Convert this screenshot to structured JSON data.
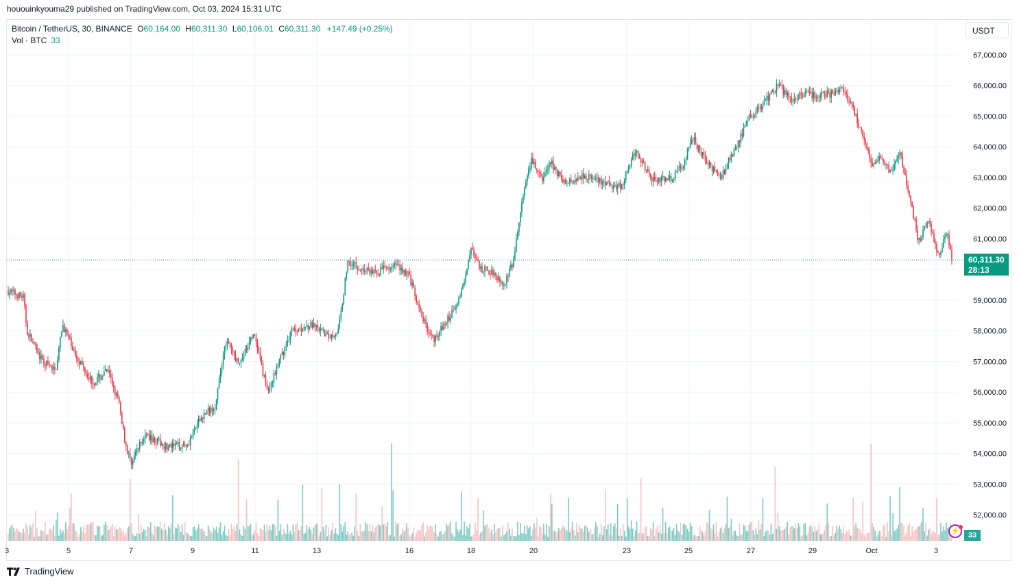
{
  "header": {
    "publish_line": "hououinkyouma29 published on TradingView.com, Oct 03, 2024 15:31 UTC"
  },
  "legend": {
    "symbol": "Bitcoin / TetherUS, 30, BINANCE",
    "open_label": "O",
    "open": "60,164.00",
    "high_label": "H",
    "high": "60,311.30",
    "low_label": "L",
    "low": "60,106.01",
    "close_label": "C",
    "close": "60,311.30",
    "change": "+147.49 (+0.25%)",
    "volume_label": "Vol · BTC",
    "volume_value": "33"
  },
  "currency_button": "USDT",
  "last_price": {
    "price": "60,311.30",
    "countdown": "28:13"
  },
  "volume_badge": "33",
  "footer": {
    "brand": "TradingView"
  },
  "colors": {
    "up": "#089981",
    "down": "#f23645",
    "vol_up": "#26a69a",
    "vol_down": "#ef9a9a",
    "grid": "#f0f3fa"
  },
  "chart_data": {
    "type": "candlestick",
    "timeframe": "30",
    "y_ticks": [
      "67,000.00",
      "66,000.00",
      "65,000.00",
      "64,000.00",
      "63,000.00",
      "62,000.00",
      "61,000.00",
      "59,000.00",
      "58,000.00",
      "57,000.00",
      "56,000.00",
      "55,000.00",
      "54,000.00",
      "53,000.00",
      "52,000.00"
    ],
    "x_ticks": [
      "3",
      "5",
      "7",
      "9",
      "11",
      "13",
      "16",
      "18",
      "20",
      "23",
      "25",
      "27",
      "29",
      "Oct",
      "3"
    ],
    "ylim": [
      51300,
      67600
    ],
    "last_close": 60311.3,
    "close_trajectory": [
      {
        "t": 0.0,
        "p": 59300
      },
      {
        "t": 0.016,
        "p": 59100
      },
      {
        "t": 0.02,
        "p": 58000
      },
      {
        "t": 0.036,
        "p": 57000
      },
      {
        "t": 0.05,
        "p": 56700
      },
      {
        "t": 0.058,
        "p": 58200
      },
      {
        "t": 0.07,
        "p": 57300
      },
      {
        "t": 0.09,
        "p": 56300
      },
      {
        "t": 0.105,
        "p": 56700
      },
      {
        "t": 0.117,
        "p": 55700
      },
      {
        "t": 0.125,
        "p": 54200
      },
      {
        "t": 0.13,
        "p": 53700
      },
      {
        "t": 0.145,
        "p": 54600
      },
      {
        "t": 0.17,
        "p": 54200
      },
      {
        "t": 0.19,
        "p": 54300
      },
      {
        "t": 0.205,
        "p": 55200
      },
      {
        "t": 0.22,
        "p": 55600
      },
      {
        "t": 0.23,
        "p": 57700
      },
      {
        "t": 0.245,
        "p": 56900
      },
      {
        "t": 0.26,
        "p": 57900
      },
      {
        "t": 0.275,
        "p": 56000
      },
      {
        "t": 0.285,
        "p": 56800
      },
      {
        "t": 0.3,
        "p": 58000
      },
      {
        "t": 0.32,
        "p": 58200
      },
      {
        "t": 0.34,
        "p": 57800
      },
      {
        "t": 0.35,
        "p": 58000
      },
      {
        "t": 0.36,
        "p": 60300
      },
      {
        "t": 0.375,
        "p": 60000
      },
      {
        "t": 0.39,
        "p": 59900
      },
      {
        "t": 0.41,
        "p": 60200
      },
      {
        "t": 0.425,
        "p": 59800
      },
      {
        "t": 0.435,
        "p": 58700
      },
      {
        "t": 0.45,
        "p": 57700
      },
      {
        "t": 0.465,
        "p": 58300
      },
      {
        "t": 0.48,
        "p": 59200
      },
      {
        "t": 0.49,
        "p": 60700
      },
      {
        "t": 0.5,
        "p": 60000
      },
      {
        "t": 0.515,
        "p": 59900
      },
      {
        "t": 0.525,
        "p": 59500
      },
      {
        "t": 0.535,
        "p": 60200
      },
      {
        "t": 0.545,
        "p": 62300
      },
      {
        "t": 0.555,
        "p": 63600
      },
      {
        "t": 0.565,
        "p": 62900
      },
      {
        "t": 0.575,
        "p": 63500
      },
      {
        "t": 0.59,
        "p": 62800
      },
      {
        "t": 0.61,
        "p": 63100
      },
      {
        "t": 0.63,
        "p": 62800
      },
      {
        "t": 0.65,
        "p": 62700
      },
      {
        "t": 0.665,
        "p": 63900
      },
      {
        "t": 0.68,
        "p": 63000
      },
      {
        "t": 0.7,
        "p": 62900
      },
      {
        "t": 0.715,
        "p": 63400
      },
      {
        "t": 0.725,
        "p": 64300
      },
      {
        "t": 0.74,
        "p": 63500
      },
      {
        "t": 0.755,
        "p": 63000
      },
      {
        "t": 0.77,
        "p": 63900
      },
      {
        "t": 0.785,
        "p": 64900
      },
      {
        "t": 0.8,
        "p": 65400
      },
      {
        "t": 0.815,
        "p": 66000
      },
      {
        "t": 0.83,
        "p": 65600
      },
      {
        "t": 0.85,
        "p": 65700
      },
      {
        "t": 0.87,
        "p": 65700
      },
      {
        "t": 0.885,
        "p": 65900
      },
      {
        "t": 0.895,
        "p": 65300
      },
      {
        "t": 0.905,
        "p": 64400
      },
      {
        "t": 0.915,
        "p": 63400
      },
      {
        "t": 0.925,
        "p": 63700
      },
      {
        "t": 0.935,
        "p": 63100
      },
      {
        "t": 0.945,
        "p": 63800
      },
      {
        "t": 0.955,
        "p": 62400
      },
      {
        "t": 0.965,
        "p": 60900
      },
      {
        "t": 0.975,
        "p": 61700
      },
      {
        "t": 0.985,
        "p": 60400
      },
      {
        "t": 0.995,
        "p": 61200
      },
      {
        "t": 1.0,
        "p": 60311
      }
    ]
  }
}
